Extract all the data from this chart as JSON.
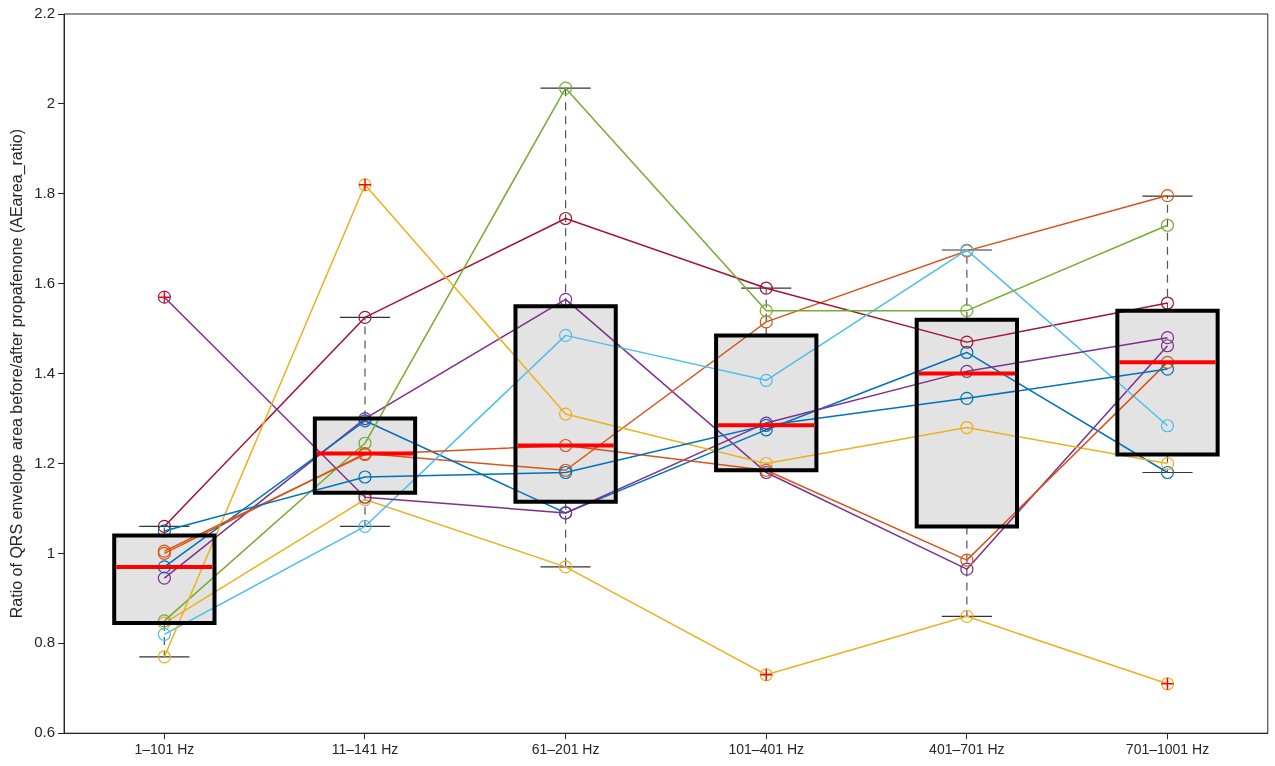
{
  "chart_data": {
    "type": "box",
    "ylabel": "Ratio of QRS envelope area before/after propafenone (AEarea_ratio)",
    "categories": [
      "1–101 Hz",
      "11–141 Hz",
      "61–201 Hz",
      "101–401 Hz",
      "401–701 Hz",
      "701–1001 Hz"
    ],
    "ylim": [
      0.6,
      2.2
    ],
    "yticks": [
      0.6,
      0.8,
      1,
      1.2,
      1.4,
      1.6,
      1.8,
      2,
      2.2
    ],
    "grid": false,
    "legend": false,
    "marker": "circle",
    "boxes": [
      {
        "low": 0.77,
        "q1": 0.845,
        "median": 0.97,
        "q3": 1.04,
        "high": 1.06,
        "outliers": [
          1.57
        ]
      },
      {
        "low": 1.06,
        "q1": 1.135,
        "median": 1.222,
        "q3": 1.3,
        "high": 1.525,
        "outliers": [
          1.82
        ]
      },
      {
        "low": 0.97,
        "q1": 1.115,
        "median": 1.24,
        "q3": 1.55,
        "high": 2.035
      },
      {
        "low": 1.185,
        "q1": 1.185,
        "median": 1.285,
        "q3": 1.485,
        "high": 1.59,
        "outliers": [
          0.73
        ]
      },
      {
        "low": 0.86,
        "q1": 1.06,
        "median": 1.4,
        "q3": 1.52,
        "high": 1.675
      },
      {
        "low": 1.18,
        "q1": 1.22,
        "median": 1.425,
        "q3": 1.54,
        "high": 1.795,
        "outliers": [
          0.71
        ]
      }
    ],
    "series": [
      {
        "type": "line",
        "color": "#0072bd",
        "values": [
          1.05,
          1.17,
          1.18,
          1.285,
          1.345,
          1.41
        ]
      },
      {
        "type": "line",
        "color": "#d95319",
        "values": [
          1.005,
          1.22,
          1.24,
          1.185,
          0.985,
          1.425
        ]
      },
      {
        "type": "line",
        "color": "#edb120",
        "values": [
          0.77,
          1.82,
          1.31,
          1.2,
          1.28,
          1.2
        ]
      },
      {
        "type": "line",
        "color": "#7e2f8e",
        "values": [
          1.57,
          1.125,
          1.09,
          1.29,
          1.405,
          1.48
        ]
      },
      {
        "type": "line",
        "color": "#77ac30",
        "values": [
          0.85,
          1.245,
          2.035,
          1.54,
          1.54,
          1.73
        ]
      },
      {
        "type": "line",
        "color": "#4dbeee",
        "values": [
          0.82,
          1.06,
          1.485,
          1.385,
          1.675,
          1.284
        ]
      },
      {
        "type": "line",
        "color": "#a2142f",
        "values": [
          1.06,
          1.525,
          1.745,
          1.59,
          1.47,
          1.557
        ]
      },
      {
        "type": "line",
        "color": "#0072bd",
        "values": [
          0.97,
          1.295,
          1.09,
          1.275,
          1.447,
          1.18
        ]
      },
      {
        "type": "line",
        "color": "#d95319",
        "values": [
          1.0,
          1.222,
          1.185,
          1.515,
          1.673,
          1.796
        ]
      },
      {
        "type": "line",
        "color": "#edb120",
        "values": [
          0.845,
          1.12,
          0.97,
          0.73,
          0.86,
          0.71
        ]
      },
      {
        "type": "line",
        "color": "#7e2f8e",
        "values": [
          0.945,
          1.3,
          1.565,
          1.18,
          0.965,
          1.462
        ]
      }
    ]
  }
}
